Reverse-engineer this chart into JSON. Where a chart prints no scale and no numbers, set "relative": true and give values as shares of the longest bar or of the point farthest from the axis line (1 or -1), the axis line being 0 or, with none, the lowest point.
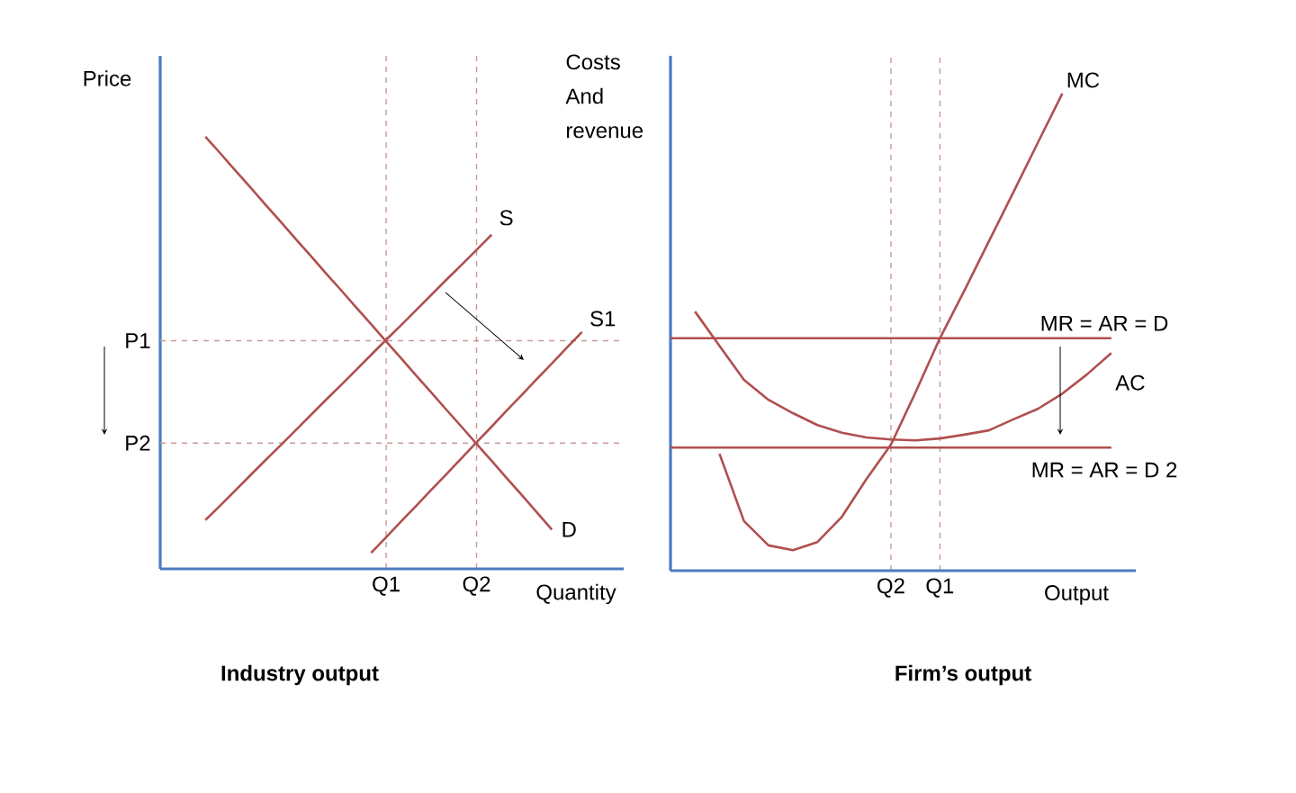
{
  "chart_data": [
    {
      "type": "line",
      "relative": true,
      "grid": "x",
      "ylabel": "Price",
      "xlabel": "Quantity",
      "title": "Industry output",
      "line_style": "solid",
      "categories": [
        null,
        null,
        null,
        null,
        null,
        null,
        null,
        null,
        null,
        null,
        null,
        null,
        null,
        null,
        null,
        "Q1",
        null,
        null,
        null,
        null,
        null,
        "Q2",
        null,
        null,
        null,
        null,
        null,
        null,
        null,
        null,
        null
      ],
      "series": [
        {
          "name": "D",
          "color": "#b04f4f",
          "values": [
            null,
            null,
            null,
            1.0,
            0.961,
            0.921,
            0.882,
            0.842,
            0.803,
            0.763,
            0.724,
            0.684,
            0.645,
            0.605,
            0.566,
            0.526,
            0.487,
            0.447,
            0.408,
            0.368,
            0.329,
            0.289,
            0.25,
            0.21,
            0.171,
            0.131,
            0.091,
            null,
            null,
            null,
            null
          ]
        },
        {
          "name": "S",
          "color": "#b04f4f",
          "values": [
            null,
            null,
            null,
            0.113,
            0.147,
            0.182,
            0.217,
            0.252,
            0.286,
            0.321,
            0.356,
            0.391,
            0.425,
            0.46,
            0.495,
            0.53,
            0.564,
            0.599,
            0.634,
            0.669,
            0.703,
            0.738,
            0.773,
            null,
            null,
            null,
            null,
            null,
            null,
            null,
            null
          ]
        },
        {
          "name": "S1",
          "color": "#b04f4f",
          "values": [
            null,
            null,
            null,
            null,
            null,
            null,
            null,
            null,
            null,
            null,
            null,
            null,
            null,
            null,
            0.037,
            0.073,
            0.11,
            0.146,
            0.183,
            0.219,
            0.256,
            0.293,
            0.329,
            0.366,
            0.402,
            0.439,
            0.475,
            0.512,
            0.548,
            null,
            null
          ]
        }
      ],
      "ref_lines": [
        {
          "axis": "y",
          "value": 0.528,
          "label": "P1",
          "color": "#c99a9a",
          "line_style": "dashed"
        },
        {
          "axis": "y",
          "value": 0.291,
          "label": "P2",
          "color": "#c99a9a",
          "line_style": "dashed"
        }
      ]
    },
    {
      "type": "line",
      "relative": true,
      "grid": "x",
      "ylabel": "Costs And revenue",
      "xlabel": "Output",
      "title": "Firm’s output",
      "line_style": "solid",
      "categories": [
        null,
        null,
        null,
        null,
        null,
        null,
        null,
        null,
        null,
        "Q2",
        null,
        "Q1",
        null,
        null,
        null,
        null,
        null,
        null,
        null
      ],
      "series": [
        {
          "name": "MC",
          "color": "#b04f4f",
          "values": [
            null,
            null,
            0.245,
            0.104,
            0.053,
            0.043,
            0.06,
            0.113,
            0.192,
            0.264,
            0.373,
            0.487,
            0.587,
            0.69,
            0.793,
            0.897,
            1.0,
            null,
            null
          ]
        },
        {
          "name": "AC",
          "color": "#b04f4f",
          "values": [
            null,
            0.543,
            0.471,
            0.4,
            0.358,
            0.33,
            0.305,
            0.289,
            0.279,
            0.275,
            0.273,
            0.277,
            0.285,
            0.294,
            0.317,
            0.339,
            0.371,
            0.411,
            0.456
          ]
        },
        {
          "name": "MR = AR = D",
          "color": "#b04f4f",
          "values": [
            0.487,
            0.487,
            0.487,
            0.487,
            0.487,
            0.487,
            0.487,
            0.487,
            0.487,
            0.487,
            0.487,
            0.487,
            0.487,
            0.487,
            0.487,
            0.487,
            0.487,
            0.487,
            0.487
          ]
        },
        {
          "name": "MR = AR = D 2",
          "color": "#b04f4f",
          "values": [
            0.258,
            0.258,
            0.258,
            0.258,
            0.258,
            0.258,
            0.258,
            0.258,
            0.258,
            0.258,
            0.258,
            0.258,
            0.258,
            0.258,
            0.258,
            0.258,
            0.258,
            0.258,
            0.258
          ]
        }
      ]
    }
  ]
}
